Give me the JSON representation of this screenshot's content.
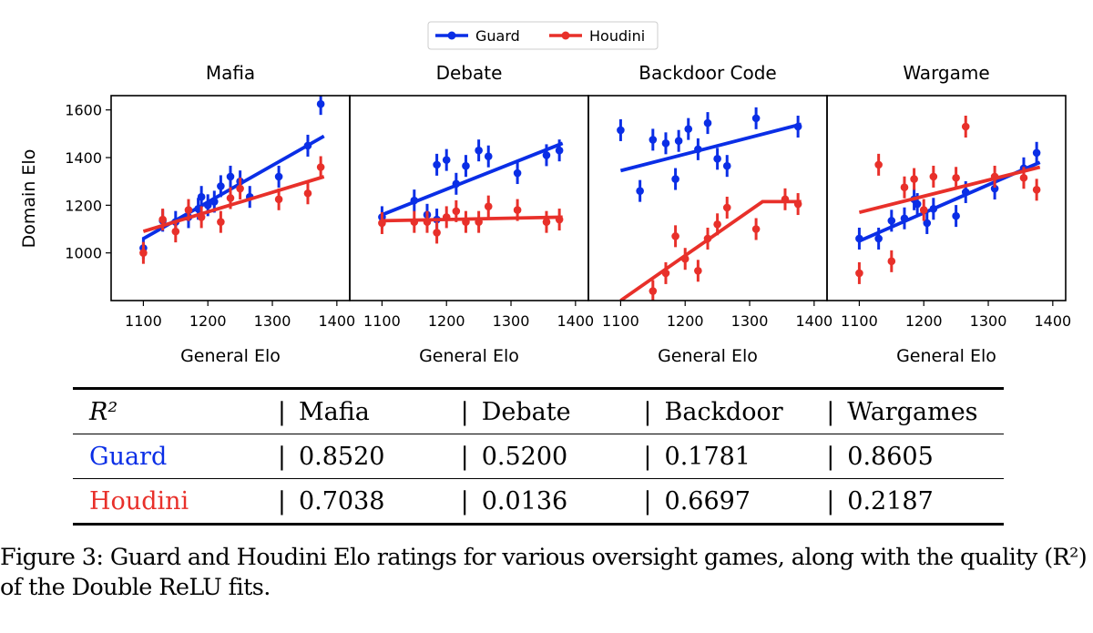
{
  "chart_data": {
    "type": "scatter",
    "legend": {
      "placement": "top-center",
      "entries": [
        {
          "name": "Guard",
          "color": "#0a2ee6"
        },
        {
          "name": "Houdini",
          "color": "#e8302a"
        }
      ]
    },
    "ylabel": "Domain Elo",
    "xlabel": "General Elo",
    "xlim": [
      1050,
      1420
    ],
    "ylim": [
      800,
      1660
    ],
    "xticks": [
      1100,
      1200,
      1300,
      1400
    ],
    "yticks": [
      1000,
      1200,
      1400,
      1600
    ],
    "panels": [
      {
        "title": "Mafia",
        "series": [
          {
            "name": "Guard",
            "points": [
              [
                1100,
                1020
              ],
              [
                1130,
                1135
              ],
              [
                1150,
                1130
              ],
              [
                1170,
                1150
              ],
              [
                1185,
                1185
              ],
              [
                1190,
                1235
              ],
              [
                1200,
                1200
              ],
              [
                1210,
                1215
              ],
              [
                1220,
                1280
              ],
              [
                1235,
                1320
              ],
              [
                1250,
                1300
              ],
              [
                1265,
                1235
              ],
              [
                1310,
                1320
              ],
              [
                1355,
                1450
              ],
              [
                1375,
                1625
              ]
            ],
            "fit": [
              [
                1100,
                1060
              ],
              [
                1380,
                1490
              ]
            ]
          },
          {
            "name": "Houdini",
            "points": [
              [
                1100,
                1000
              ],
              [
                1130,
                1140
              ],
              [
                1150,
                1090
              ],
              [
                1170,
                1180
              ],
              [
                1190,
                1150
              ],
              [
                1220,
                1130
              ],
              [
                1235,
                1230
              ],
              [
                1250,
                1270
              ],
              [
                1310,
                1225
              ],
              [
                1355,
                1250
              ],
              [
                1375,
                1360
              ]
            ],
            "fit": [
              [
                1100,
                1090
              ],
              [
                1380,
                1320
              ]
            ]
          }
        ]
      },
      {
        "title": "Debate",
        "series": [
          {
            "name": "Guard",
            "points": [
              [
                1100,
                1150
              ],
              [
                1150,
                1220
              ],
              [
                1170,
                1160
              ],
              [
                1185,
                1140
              ],
              [
                1185,
                1370
              ],
              [
                1200,
                1390
              ],
              [
                1215,
                1290
              ],
              [
                1230,
                1365
              ],
              [
                1250,
                1430
              ],
              [
                1265,
                1405
              ],
              [
                1310,
                1335
              ],
              [
                1355,
                1410
              ],
              [
                1375,
                1430
              ]
            ],
            "fit": [
              [
                1100,
                1160
              ],
              [
                1380,
                1460
              ]
            ]
          },
          {
            "name": "Houdini",
            "points": [
              [
                1100,
                1125
              ],
              [
                1150,
                1130
              ],
              [
                1170,
                1130
              ],
              [
                1185,
                1085
              ],
              [
                1200,
                1150
              ],
              [
                1215,
                1175
              ],
              [
                1230,
                1130
              ],
              [
                1250,
                1130
              ],
              [
                1265,
                1195
              ],
              [
                1310,
                1180
              ],
              [
                1355,
                1130
              ],
              [
                1375,
                1140
              ]
            ],
            "fit": [
              [
                1100,
                1135
              ],
              [
                1380,
                1150
              ]
            ]
          }
        ]
      },
      {
        "title": "Backdoor Code",
        "series": [
          {
            "name": "Guard",
            "points": [
              [
                1100,
                1515
              ],
              [
                1130,
                1260
              ],
              [
                1150,
                1475
              ],
              [
                1170,
                1460
              ],
              [
                1185,
                1310
              ],
              [
                1190,
                1470
              ],
              [
                1205,
                1520
              ],
              [
                1220,
                1435
              ],
              [
                1235,
                1545
              ],
              [
                1250,
                1395
              ],
              [
                1265,
                1365
              ],
              [
                1310,
                1565
              ],
              [
                1375,
                1530
              ]
            ],
            "fit": [
              [
                1100,
                1345
              ],
              [
                1380,
                1540
              ]
            ]
          },
          {
            "name": "Houdini",
            "points": [
              [
                1150,
                840
              ],
              [
                1170,
                915
              ],
              [
                1185,
                1070
              ],
              [
                1200,
                975
              ],
              [
                1220,
                925
              ],
              [
                1235,
                1060
              ],
              [
                1250,
                1120
              ],
              [
                1265,
                1190
              ],
              [
                1310,
                1100
              ],
              [
                1355,
                1225
              ],
              [
                1375,
                1205
              ]
            ],
            "fit": [
              [
                1100,
                800
              ],
              [
                1320,
                1215
              ],
              [
                1380,
                1215
              ]
            ]
          }
        ]
      },
      {
        "title": "Wargame",
        "series": [
          {
            "name": "Guard",
            "points": [
              [
                1100,
                1060
              ],
              [
                1130,
                1060
              ],
              [
                1150,
                1135
              ],
              [
                1170,
                1145
              ],
              [
                1185,
                1225
              ],
              [
                1190,
                1205
              ],
              [
                1205,
                1125
              ],
              [
                1215,
                1185
              ],
              [
                1250,
                1155
              ],
              [
                1265,
                1255
              ],
              [
                1310,
                1270
              ],
              [
                1355,
                1355
              ],
              [
                1375,
                1420
              ]
            ],
            "fit": [
              [
                1100,
                1050
              ],
              [
                1380,
                1380
              ]
            ]
          },
          {
            "name": "Houdini",
            "points": [
              [
                1100,
                915
              ],
              [
                1130,
                1370
              ],
              [
                1150,
                965
              ],
              [
                1170,
                1275
              ],
              [
                1185,
                1310
              ],
              [
                1200,
                1180
              ],
              [
                1215,
                1320
              ],
              [
                1250,
                1315
              ],
              [
                1265,
                1530
              ],
              [
                1310,
                1320
              ],
              [
                1355,
                1315
              ],
              [
                1375,
                1265
              ]
            ],
            "fit": [
              [
                1100,
                1170
              ],
              [
                1380,
                1360
              ]
            ]
          }
        ]
      }
    ]
  },
  "table": {
    "header": [
      "R²",
      "Mafia",
      "Debate",
      "Backdoor",
      "Wargames"
    ],
    "rows": [
      {
        "label": "Guard",
        "color": "#0a2ee6",
        "values": [
          "0.8520",
          "0.5200",
          "0.1781",
          "0.8605"
        ]
      },
      {
        "label": "Houdini",
        "color": "#e8302a",
        "values": [
          "0.7038",
          "0.0136",
          "0.6697",
          "0.2187"
        ]
      }
    ]
  },
  "caption": "Figure 3: Guard and Houdini Elo ratings for various oversight games, along with the quality (R²) of the Double ReLU fits."
}
